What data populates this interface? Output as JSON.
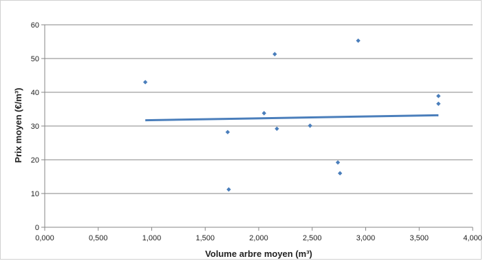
{
  "chart_data": {
    "type": "scatter",
    "title": "",
    "xlabel": "Volume arbre moyen (m³)",
    "ylabel": "Prix moyen (€/m³)",
    "xlim": [
      0,
      4
    ],
    "ylim": [
      0,
      60
    ],
    "x_ticks": [
      "0,000",
      "0,500",
      "1,000",
      "1,500",
      "2,000",
      "2,500",
      "3,000",
      "3,500",
      "4,000"
    ],
    "y_ticks": [
      "0",
      "10",
      "20",
      "30",
      "40",
      "50",
      "60"
    ],
    "grid": "horizontal",
    "legend": "none",
    "point_color": "#4a7ebb",
    "trendline_color": "#4a7ebb",
    "points": [
      {
        "x": 0.94,
        "y": 43.0
      },
      {
        "x": 1.71,
        "y": 28.2
      },
      {
        "x": 1.72,
        "y": 11.2
      },
      {
        "x": 2.05,
        "y": 33.8
      },
      {
        "x": 2.15,
        "y": 51.3
      },
      {
        "x": 2.17,
        "y": 29.2
      },
      {
        "x": 2.48,
        "y": 30.1
      },
      {
        "x": 2.74,
        "y": 19.2
      },
      {
        "x": 2.76,
        "y": 16.0
      },
      {
        "x": 2.93,
        "y": 55.3
      },
      {
        "x": 3.68,
        "y": 38.9
      },
      {
        "x": 3.68,
        "y": 36.6
      }
    ],
    "trendline": {
      "x_start": 0.94,
      "y_start": 31.7,
      "x_end": 3.68,
      "y_end": 33.2
    }
  }
}
